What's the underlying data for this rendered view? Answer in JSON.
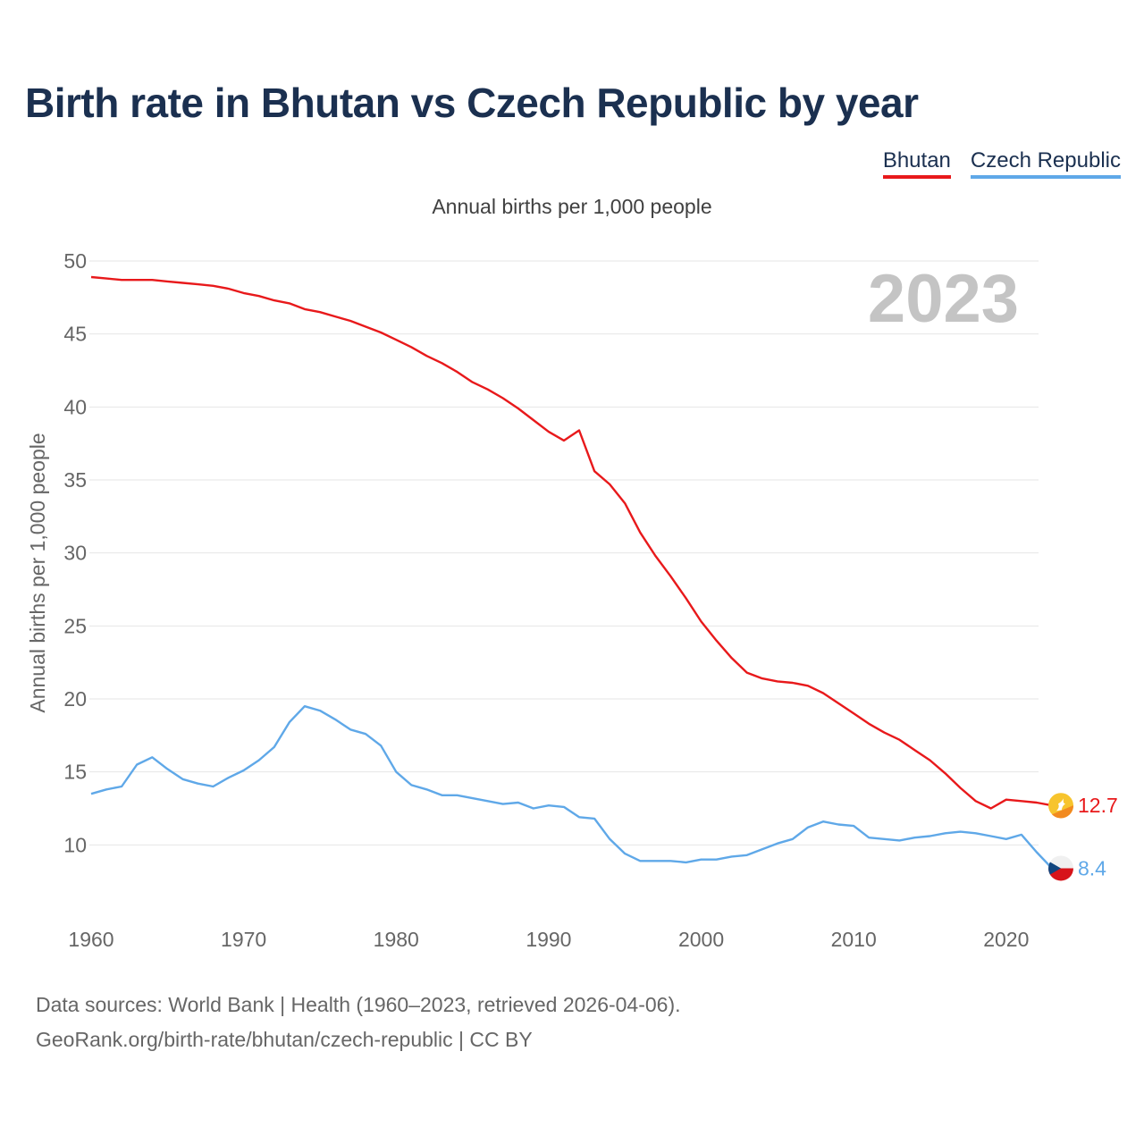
{
  "title": "Birth rate in Bhutan vs Czech Republic by year",
  "subtitle": "Annual births per 1,000 people",
  "footer": {
    "line1": "Data sources: World Bank | Health (1960–2023, retrieved 2026-04-06).",
    "line2": "GeoRank.org/birth-rate/bhutan/czech-republic | CC BY"
  },
  "legend": [
    {
      "name": "Bhutan",
      "color": "#e8191b"
    },
    {
      "name": "Czech Republic",
      "color": "#5fa8e8"
    }
  ],
  "colors": {
    "bhutan": "#e8191b",
    "czech": "#5fa8e8",
    "grid": "#e6e6e6",
    "axis_text": "#666666",
    "year_watermark": "#c4c4c4"
  },
  "chart_data": {
    "type": "line",
    "title": "Birth rate in Bhutan vs Czech Republic by year",
    "subtitle": "Annual births per 1,000 people",
    "ylabel": "Annual births per 1,000 people",
    "xlabel": "",
    "year_label": "2023",
    "xlim": [
      1960,
      2023
    ],
    "ylim": [
      5,
      50
    ],
    "x_ticks": [
      1960,
      1970,
      1980,
      1990,
      2000,
      2010,
      2020
    ],
    "y_ticks": [
      10,
      15,
      20,
      25,
      30,
      35,
      40,
      45,
      50
    ],
    "x": [
      1960,
      1961,
      1962,
      1963,
      1964,
      1965,
      1966,
      1967,
      1968,
      1969,
      1970,
      1971,
      1972,
      1973,
      1974,
      1975,
      1976,
      1977,
      1978,
      1979,
      1980,
      1981,
      1982,
      1983,
      1984,
      1985,
      1986,
      1987,
      1988,
      1989,
      1990,
      1991,
      1992,
      1993,
      1994,
      1995,
      1996,
      1997,
      1998,
      1999,
      2000,
      2001,
      2002,
      2003,
      2004,
      2005,
      2006,
      2007,
      2008,
      2009,
      2010,
      2011,
      2012,
      2013,
      2014,
      2015,
      2016,
      2017,
      2018,
      2019,
      2020,
      2021,
      2022,
      2023
    ],
    "series": [
      {
        "name": "Bhutan",
        "end_label": "12.7",
        "values": [
          48.9,
          48.8,
          48.7,
          48.7,
          48.7,
          48.6,
          48.5,
          48.4,
          48.3,
          48.1,
          47.8,
          47.6,
          47.3,
          47.1,
          46.7,
          46.5,
          46.2,
          45.9,
          45.5,
          45.1,
          44.6,
          44.1,
          43.5,
          43.0,
          42.4,
          41.7,
          41.2,
          40.6,
          39.9,
          39.1,
          38.3,
          37.7,
          38.4,
          35.6,
          34.7,
          33.4,
          31.4,
          29.8,
          28.4,
          26.9,
          25.3,
          24.0,
          22.8,
          21.8,
          21.4,
          21.2,
          21.1,
          20.9,
          20.4,
          19.7,
          19.0,
          18.3,
          17.7,
          17.2,
          16.5,
          15.8,
          14.9,
          13.9,
          13.0,
          12.5,
          13.1,
          13.0,
          12.9,
          12.7
        ]
      },
      {
        "name": "Czech Republic",
        "end_label": "8.4",
        "values": [
          13.5,
          13.8,
          14.0,
          15.5,
          16.0,
          15.2,
          14.5,
          14.2,
          14.0,
          14.6,
          15.1,
          15.8,
          16.7,
          18.4,
          19.5,
          19.2,
          18.6,
          17.9,
          17.6,
          16.8,
          15.0,
          14.1,
          13.8,
          13.4,
          13.4,
          13.2,
          13.0,
          12.8,
          12.9,
          12.5,
          12.7,
          12.6,
          11.9,
          11.8,
          10.4,
          9.4,
          8.9,
          8.9,
          8.9,
          8.8,
          9.0,
          9.0,
          9.2,
          9.3,
          9.7,
          10.1,
          10.4,
          11.2,
          11.6,
          11.4,
          11.3,
          10.5,
          10.4,
          10.3,
          10.5,
          10.6,
          10.8,
          10.9,
          10.8,
          10.6,
          10.4,
          10.7,
          9.5,
          8.4
        ]
      }
    ]
  }
}
